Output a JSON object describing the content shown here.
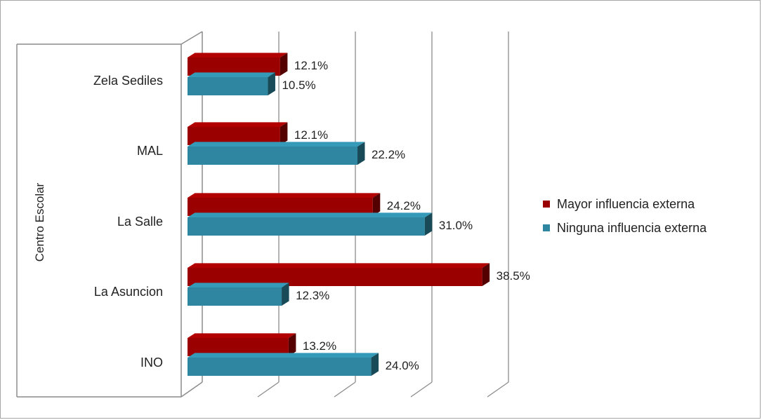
{
  "chart_data": {
    "type": "bar",
    "orientation": "horizontal",
    "three_d": true,
    "ylabel": "Centro Escolar",
    "categories": [
      "Zela Sediles",
      "MAL",
      "La Salle",
      "La Asuncion",
      "INO"
    ],
    "series": [
      {
        "name": "Mayor influencia externa",
        "color": "#9b0000",
        "values": [
          12.1,
          12.1,
          24.2,
          38.5,
          13.2
        ],
        "labels": [
          "12.1%",
          "12.1%",
          "24.2%",
          "38.5%",
          "13.2%"
        ]
      },
      {
        "name": "Ninguna influencia externa",
        "color": "#2e86a0",
        "values": [
          10.5,
          22.2,
          31.0,
          12.3,
          24.0
        ],
        "labels": [
          "10.5%",
          "22.2%",
          "31.0%",
          "12.3%",
          "24.0%"
        ]
      }
    ],
    "xlim": [
      0,
      40
    ],
    "grid": true,
    "legend_position": "right"
  }
}
